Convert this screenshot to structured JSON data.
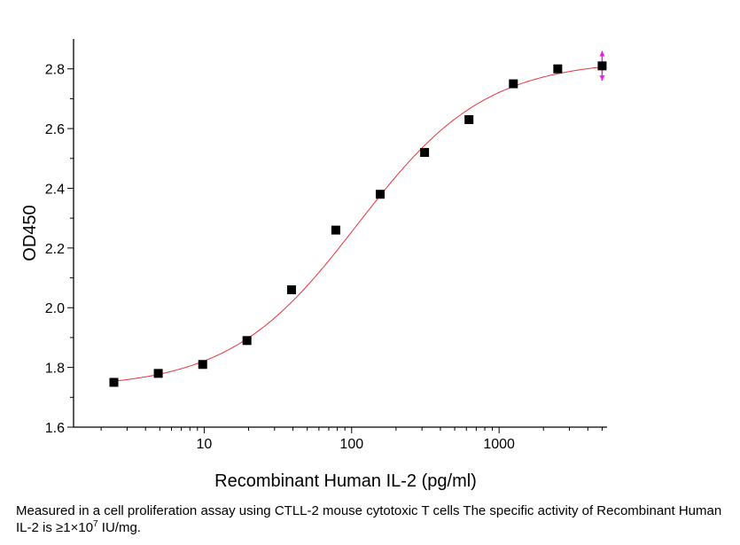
{
  "chart_data": {
    "type": "scatter",
    "xlabel": "Recombinant Human IL-2 (pg/ml)",
    "ylabel": "OD450",
    "xscale": "log",
    "xlim": [
      1.3,
      5400
    ],
    "ylim": [
      1.6,
      2.9
    ],
    "xticks": [
      "10",
      "100",
      "1000"
    ],
    "yticks": [
      "1.6",
      "1.8",
      "2.0",
      "2.2",
      "2.4",
      "2.6",
      "2.8"
    ],
    "grid": false,
    "series": [
      {
        "x": [
          2.44,
          4.88,
          9.77,
          19.5,
          39.1,
          78.1,
          156.25,
          312.5,
          625,
          1250,
          2500,
          5000
        ],
        "y": [
          1.75,
          1.78,
          1.81,
          1.89,
          2.06,
          2.26,
          2.38,
          2.52,
          2.63,
          2.75,
          2.8,
          2.81
        ],
        "marker": "square",
        "color": "#000000"
      }
    ],
    "fit_curve": {
      "model": "4PL",
      "bottom": 1.73,
      "top": 2.83,
      "ec50": 110,
      "hill": 1.0,
      "color": "#e8323c"
    },
    "error_bar": {
      "x": 5000,
      "y": 2.81,
      "err": 0.05,
      "color": "#e020e0"
    }
  },
  "caption": {
    "text": "Measured in a cell proliferation assay using CTLL-2 mouse cytotoxic T cells The specific activity of Recombinant Human IL-2 is ≥1×10",
    "exponent": "7",
    "suffix": " IU/mg."
  }
}
